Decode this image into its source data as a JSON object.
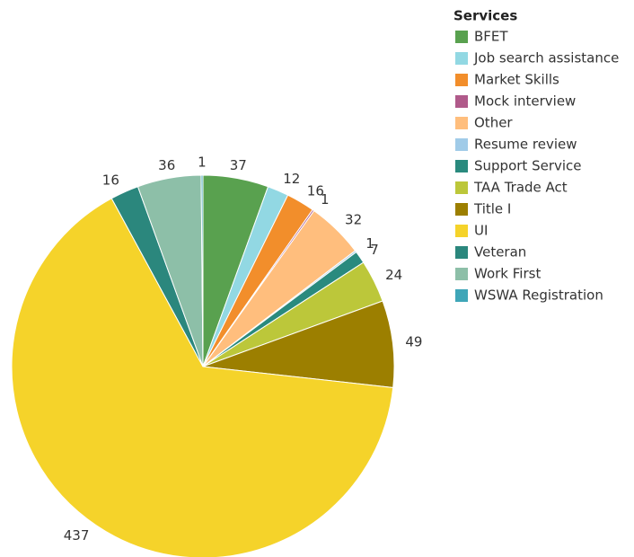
{
  "chart_data": {
    "type": "pie",
    "legend_title": "Services",
    "legend": "right",
    "categories": [
      "BFET",
      "Job search assistance",
      "Market Skills",
      "Mock interview",
      "Other",
      "Resume review",
      "Support Service",
      "TAA Trade Act",
      "Title I",
      "UI",
      "Veteran",
      "Work First",
      "WSWA Registration"
    ],
    "values": [
      37,
      12,
      16,
      1,
      32,
      1,
      7,
      24,
      49,
      437,
      16,
      36,
      1
    ],
    "colors": [
      "#59a14f",
      "#92d8e3",
      "#f28e2b",
      "#b05a8a",
      "#ffbe7d",
      "#a0cbe8",
      "#2a8a7e",
      "#bcc73a",
      "#9c7f00",
      "#f5d32a",
      "#2b877d",
      "#8dbfa8",
      "#3fa6b8"
    ]
  }
}
